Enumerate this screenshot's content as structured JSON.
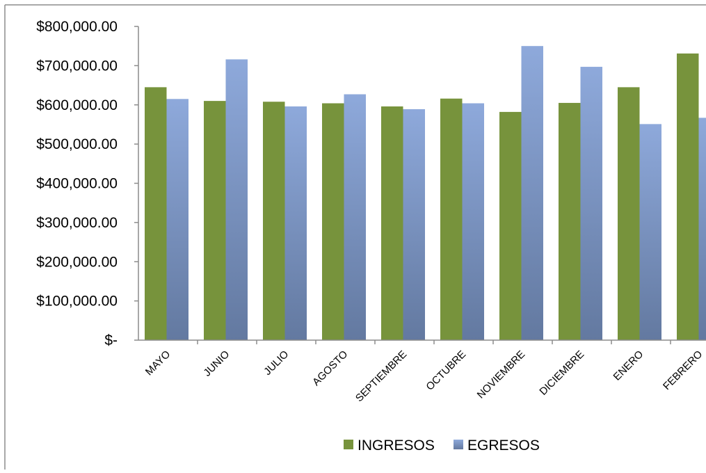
{
  "chart_data": {
    "type": "bar",
    "categories": [
      "MAYO",
      "JUNIO",
      "JULIO",
      "AGOSTO",
      "SEPTIEMBRE",
      "OCTUBRE",
      "NOVIEMBRE",
      "DICIEMBRE",
      "ENERO",
      "FEBRERO"
    ],
    "series": [
      {
        "name": "INGRESOS",
        "color": "#77933C",
        "values": [
          645000,
          610000,
          608000,
          604000,
          596000,
          616000,
          582000,
          605000,
          645000,
          731000
        ]
      },
      {
        "name": "EGRESOS",
        "color": "#8EA9DB",
        "color_dark": "#6379A0",
        "values": [
          615000,
          716000,
          596000,
          627000,
          589000,
          604000,
          750000,
          697000,
          551000,
          567000
        ]
      }
    ],
    "y_ticks": [
      {
        "value": 800000,
        "label": "$800,000.00"
      },
      {
        "value": 700000,
        "label": "$700,000.00"
      },
      {
        "value": 600000,
        "label": "$600,000.00"
      },
      {
        "value": 500000,
        "label": "$500,000.00"
      },
      {
        "value": 400000,
        "label": "$400,000.00"
      },
      {
        "value": 300000,
        "label": "$300,000.00"
      },
      {
        "value": 200000,
        "label": "$200,000.00"
      },
      {
        "value": 100000,
        "label": "$100,000.00"
      },
      {
        "value": 0,
        "label": "$-"
      }
    ],
    "ylim": [
      0,
      800000
    ],
    "title": "",
    "xlabel": "",
    "ylabel": "",
    "grid": false,
    "legend_position": "bottom"
  }
}
